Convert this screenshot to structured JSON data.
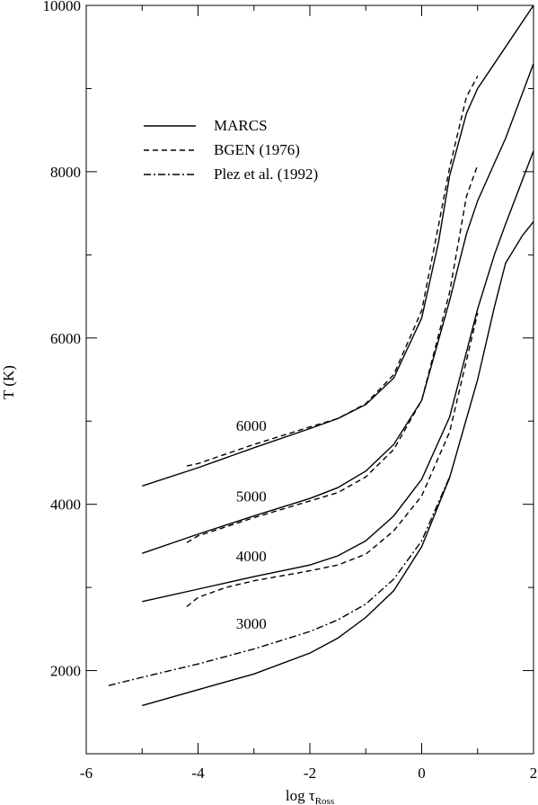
{
  "chart_data": {
    "type": "line",
    "title": "",
    "xlabel": {
      "main": "log τ",
      "sub": "Ross"
    },
    "ylabel": "T (K)",
    "xlim": [
      -6,
      2
    ],
    "ylim": [
      1000,
      10000
    ],
    "xticks": [
      -6,
      -4,
      -2,
      0,
      2
    ],
    "xtick_labels": [
      "-6",
      "-4",
      "-2",
      "0",
      "2"
    ],
    "yticks": [
      2000,
      4000,
      6000,
      8000,
      10000
    ],
    "ytick_labels": [
      "2000",
      "4000",
      "6000",
      "8000",
      "10000"
    ],
    "grid": false,
    "legend_position": "top-left",
    "legend": [
      {
        "label": "MARCS",
        "style": "solid"
      },
      {
        "label": "BGEN (1976)",
        "style": "dashed"
      },
      {
        "label": "Plez et al. (1992)",
        "style": "dashdot"
      }
    ],
    "annotations": [
      {
        "text": "6000",
        "x": -3.0,
        "y": 4950
      },
      {
        "text": "5000",
        "x": -3.0,
        "y": 4100
      },
      {
        "text": "4000",
        "x": -3.0,
        "y": 3380
      },
      {
        "text": "3000",
        "x": -3.0,
        "y": 2570
      }
    ],
    "series": [
      {
        "style": "solid",
        "x": [
          -5,
          -4,
          -3,
          -2,
          -1.5,
          -1,
          -0.5,
          0,
          0.3,
          0.5,
          0.8,
          1.0,
          1.5,
          2.0
        ],
        "y": [
          4220,
          4440,
          4680,
          4910,
          5030,
          5200,
          5520,
          6240,
          7150,
          7950,
          8700,
          9000,
          9500,
          10000
        ]
      },
      {
        "style": "solid",
        "x": [
          -5,
          -4,
          -3,
          -2,
          -1.5,
          -1,
          -0.5,
          0,
          0.5,
          0.8,
          1.0,
          1.3,
          1.5,
          2.0
        ],
        "y": [
          3410,
          3640,
          3860,
          4070,
          4200,
          4400,
          4720,
          5250,
          6450,
          7250,
          7650,
          8100,
          8400,
          9300
        ]
      },
      {
        "style": "solid",
        "x": [
          -5,
          -4,
          -3,
          -2,
          -1.5,
          -1,
          -0.5,
          0,
          0.5,
          1.0,
          1.3,
          1.5,
          2.0
        ],
        "y": [
          2830,
          2980,
          3130,
          3270,
          3380,
          3560,
          3860,
          4300,
          5050,
          6350,
          7000,
          7370,
          8250
        ]
      },
      {
        "style": "solid",
        "x": [
          -5,
          -4,
          -3,
          -2,
          -1.5,
          -1,
          -0.5,
          0,
          0.5,
          1.0,
          1.3,
          1.5,
          1.8,
          2.0
        ],
        "y": [
          1580,
          1770,
          1960,
          2210,
          2390,
          2640,
          2960,
          3490,
          4320,
          5500,
          6370,
          6900,
          7230,
          7400
        ]
      },
      {
        "style": "dashed",
        "x": [
          -4.2,
          -4,
          -3,
          -2,
          -1.5,
          -1,
          -0.5,
          0,
          0.3,
          0.5,
          0.8,
          1.0
        ],
        "y": [
          4460,
          4490,
          4720,
          4930,
          5030,
          5210,
          5560,
          6330,
          7350,
          8050,
          8900,
          9150
        ]
      },
      {
        "style": "dashed",
        "x": [
          -4.2,
          -4,
          -3,
          -2,
          -1.5,
          -1,
          -0.5,
          0,
          0.5,
          0.8,
          1.0
        ],
        "y": [
          3540,
          3620,
          3840,
          4040,
          4140,
          4330,
          4660,
          5250,
          6550,
          7700,
          8080
        ]
      },
      {
        "style": "dashed",
        "x": [
          -4.2,
          -4,
          -3.5,
          -3,
          -2,
          -1.5,
          -1,
          -0.5,
          0,
          0.5,
          1.0
        ],
        "y": [
          2770,
          2880,
          3000,
          3080,
          3200,
          3270,
          3400,
          3680,
          4100,
          4870,
          6300
        ]
      },
      {
        "style": "dashdot",
        "x": [
          -5.6,
          -5,
          -4,
          -3,
          -2,
          -1.5,
          -1,
          -0.5,
          0,
          0.5
        ],
        "y": [
          1820,
          1920,
          2080,
          2260,
          2470,
          2610,
          2800,
          3100,
          3560,
          4330
        ]
      }
    ]
  }
}
